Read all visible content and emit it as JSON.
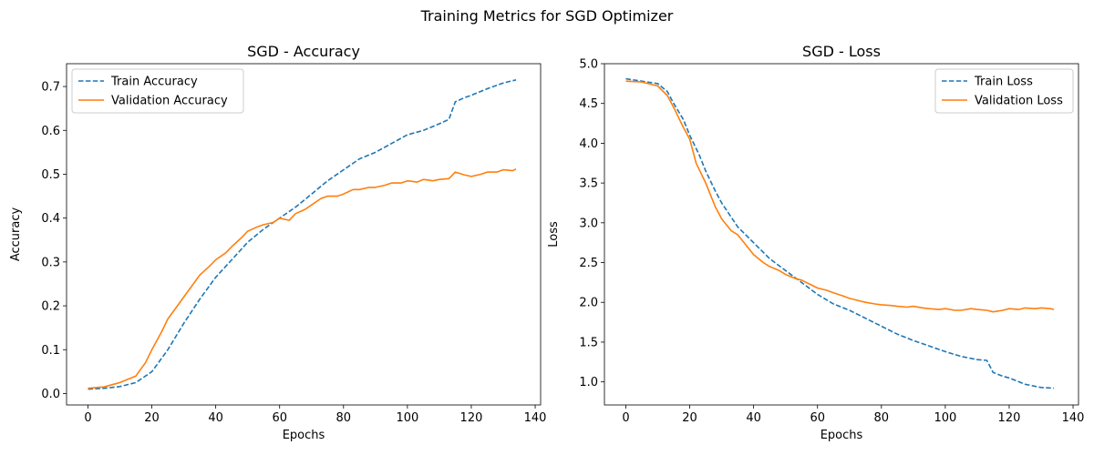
{
  "figure": {
    "title": "Training Metrics for SGD Optimizer"
  },
  "chart_data": [
    {
      "type": "line",
      "title": "SGD - Accuracy",
      "xlabel": "Epochs",
      "ylabel": "Accuracy",
      "xlim": [
        -6.7,
        141.7
      ],
      "ylim": [
        -0.026,
        0.752
      ],
      "xticks": [
        0,
        20,
        40,
        60,
        80,
        100,
        120,
        140
      ],
      "yticks": [
        0.0,
        0.1,
        0.2,
        0.3,
        0.4,
        0.5,
        0.6,
        0.7
      ],
      "xtick_labels": [
        "0",
        "20",
        "40",
        "60",
        "80",
        "100",
        "120",
        "140"
      ],
      "ytick_labels": [
        "0.0",
        "0.1",
        "0.2",
        "0.3",
        "0.4",
        "0.5",
        "0.6",
        "0.7"
      ],
      "grid": false,
      "legend_position": "upper left",
      "series": [
        {
          "name": "Train Accuracy",
          "color": "#1f77b4",
          "dash": "dashed",
          "x": [
            0,
            5,
            10,
            15,
            20,
            25,
            30,
            35,
            40,
            45,
            50,
            55,
            60,
            65,
            70,
            75,
            80,
            85,
            90,
            95,
            100,
            105,
            110,
            113,
            115,
            118,
            120,
            125,
            130,
            134
          ],
          "y": [
            0.01,
            0.012,
            0.016,
            0.025,
            0.05,
            0.1,
            0.16,
            0.215,
            0.265,
            0.305,
            0.345,
            0.375,
            0.4,
            0.425,
            0.455,
            0.485,
            0.51,
            0.535,
            0.55,
            0.57,
            0.59,
            0.6,
            0.615,
            0.625,
            0.665,
            0.675,
            0.68,
            0.695,
            0.708,
            0.715
          ]
        },
        {
          "name": "Validation Accuracy",
          "color": "#ff7f0e",
          "dash": "solid",
          "x": [
            0,
            5,
            10,
            15,
            18,
            20,
            23,
            25,
            28,
            30,
            33,
            35,
            38,
            40,
            43,
            45,
            48,
            50,
            53,
            55,
            58,
            60,
            63,
            65,
            68,
            70,
            73,
            75,
            78,
            80,
            83,
            85,
            88,
            90,
            93,
            95,
            98,
            100,
            103,
            105,
            108,
            110,
            113,
            115,
            118,
            120,
            123,
            125,
            128,
            130,
            133,
            134
          ],
          "y": [
            0.012,
            0.015,
            0.025,
            0.04,
            0.07,
            0.1,
            0.14,
            0.17,
            0.2,
            0.22,
            0.25,
            0.27,
            0.29,
            0.305,
            0.32,
            0.335,
            0.355,
            0.37,
            0.38,
            0.385,
            0.39,
            0.4,
            0.395,
            0.41,
            0.42,
            0.43,
            0.445,
            0.45,
            0.45,
            0.455,
            0.465,
            0.465,
            0.47,
            0.47,
            0.475,
            0.48,
            0.48,
            0.485,
            0.482,
            0.488,
            0.485,
            0.488,
            0.49,
            0.505,
            0.498,
            0.495,
            0.5,
            0.505,
            0.505,
            0.51,
            0.508,
            0.512
          ]
        }
      ]
    },
    {
      "type": "line",
      "title": "SGD - Loss",
      "xlabel": "Epochs",
      "ylabel": "Loss",
      "xlim": [
        -6.7,
        141.7
      ],
      "ylim": [
        0.71,
        5.0
      ],
      "xticks": [
        0,
        20,
        40,
        60,
        80,
        100,
        120,
        140
      ],
      "yticks": [
        1.0,
        1.5,
        2.0,
        2.5,
        3.0,
        3.5,
        4.0,
        4.5,
        5.0
      ],
      "xtick_labels": [
        "0",
        "20",
        "40",
        "60",
        "80",
        "100",
        "120",
        "140"
      ],
      "ytick_labels": [
        "1.0",
        "1.5",
        "2.0",
        "2.5",
        "3.0",
        "3.5",
        "4.0",
        "4.5",
        "5.0"
      ],
      "grid": false,
      "legend_position": "upper right",
      "series": [
        {
          "name": "Train Loss",
          "color": "#1f77b4",
          "dash": "dashed",
          "x": [
            0,
            5,
            10,
            13,
            15,
            18,
            20,
            23,
            25,
            28,
            30,
            35,
            40,
            45,
            50,
            55,
            60,
            65,
            70,
            75,
            80,
            85,
            90,
            95,
            100,
            105,
            110,
            113,
            115,
            118,
            120,
            125,
            130,
            134
          ],
          "y": [
            4.81,
            4.78,
            4.75,
            4.65,
            4.5,
            4.3,
            4.1,
            3.85,
            3.65,
            3.4,
            3.25,
            2.95,
            2.75,
            2.55,
            2.4,
            2.25,
            2.1,
            1.98,
            1.9,
            1.8,
            1.7,
            1.6,
            1.52,
            1.45,
            1.38,
            1.32,
            1.28,
            1.27,
            1.12,
            1.07,
            1.05,
            0.97,
            0.93,
            0.92
          ]
        },
        {
          "name": "Validation Loss",
          "color": "#ff7f0e",
          "dash": "solid",
          "x": [
            0,
            5,
            10,
            13,
            15,
            18,
            20,
            22,
            25,
            28,
            30,
            33,
            35,
            38,
            40,
            43,
            45,
            48,
            50,
            53,
            55,
            58,
            60,
            63,
            65,
            68,
            70,
            73,
            75,
            78,
            80,
            83,
            85,
            88,
            90,
            93,
            95,
            98,
            100,
            103,
            105,
            108,
            110,
            113,
            115,
            118,
            120,
            123,
            125,
            128,
            130,
            133,
            134
          ],
          "y": [
            4.78,
            4.77,
            4.72,
            4.6,
            4.45,
            4.2,
            4.05,
            3.75,
            3.5,
            3.2,
            3.05,
            2.9,
            2.85,
            2.7,
            2.6,
            2.5,
            2.45,
            2.4,
            2.35,
            2.3,
            2.28,
            2.22,
            2.18,
            2.15,
            2.12,
            2.08,
            2.05,
            2.02,
            2.0,
            1.98,
            1.97,
            1.96,
            1.95,
            1.94,
            1.95,
            1.93,
            1.92,
            1.91,
            1.92,
            1.9,
            1.9,
            1.92,
            1.91,
            1.9,
            1.88,
            1.9,
            1.92,
            1.91,
            1.93,
            1.92,
            1.93,
            1.92,
            1.91
          ]
        }
      ]
    }
  ]
}
